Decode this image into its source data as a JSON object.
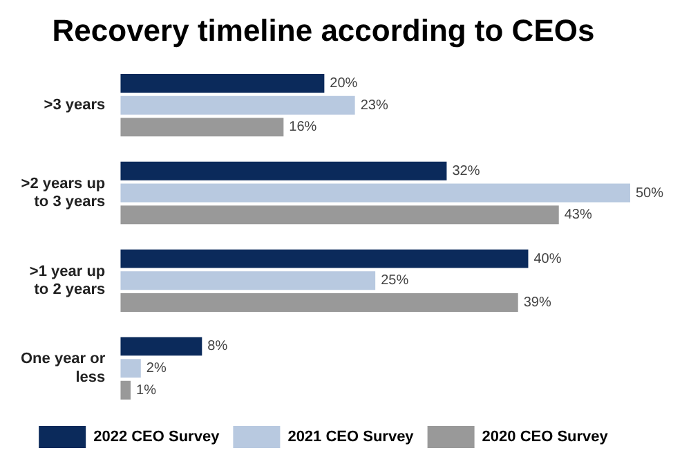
{
  "chart_data": {
    "type": "bar",
    "orientation": "horizontal",
    "title": "Recovery timeline according to CEOs",
    "categories": [
      ">3 years",
      ">2 years up to 3 years",
      ">1 year up to 2 years",
      "One year or less"
    ],
    "series": [
      {
        "name": "2022 CEO Survey",
        "color": "#0b2a5b",
        "values": [
          20,
          32,
          40,
          8
        ],
        "value_labels": [
          "20%",
          "32%",
          "40%",
          "8%"
        ]
      },
      {
        "name": "2021 CEO Survey",
        "color": "#b8c9e0",
        "values": [
          23,
          50,
          25,
          2
        ],
        "value_labels": [
          "23%",
          "50%",
          "25%",
          "2%"
        ]
      },
      {
        "name": "2020 CEO Survey",
        "color": "#999999",
        "values": [
          16,
          43,
          39,
          1
        ],
        "value_labels": [
          "16%",
          "43%",
          "39%",
          "1%"
        ]
      }
    ],
    "legend": "bottom"
  }
}
